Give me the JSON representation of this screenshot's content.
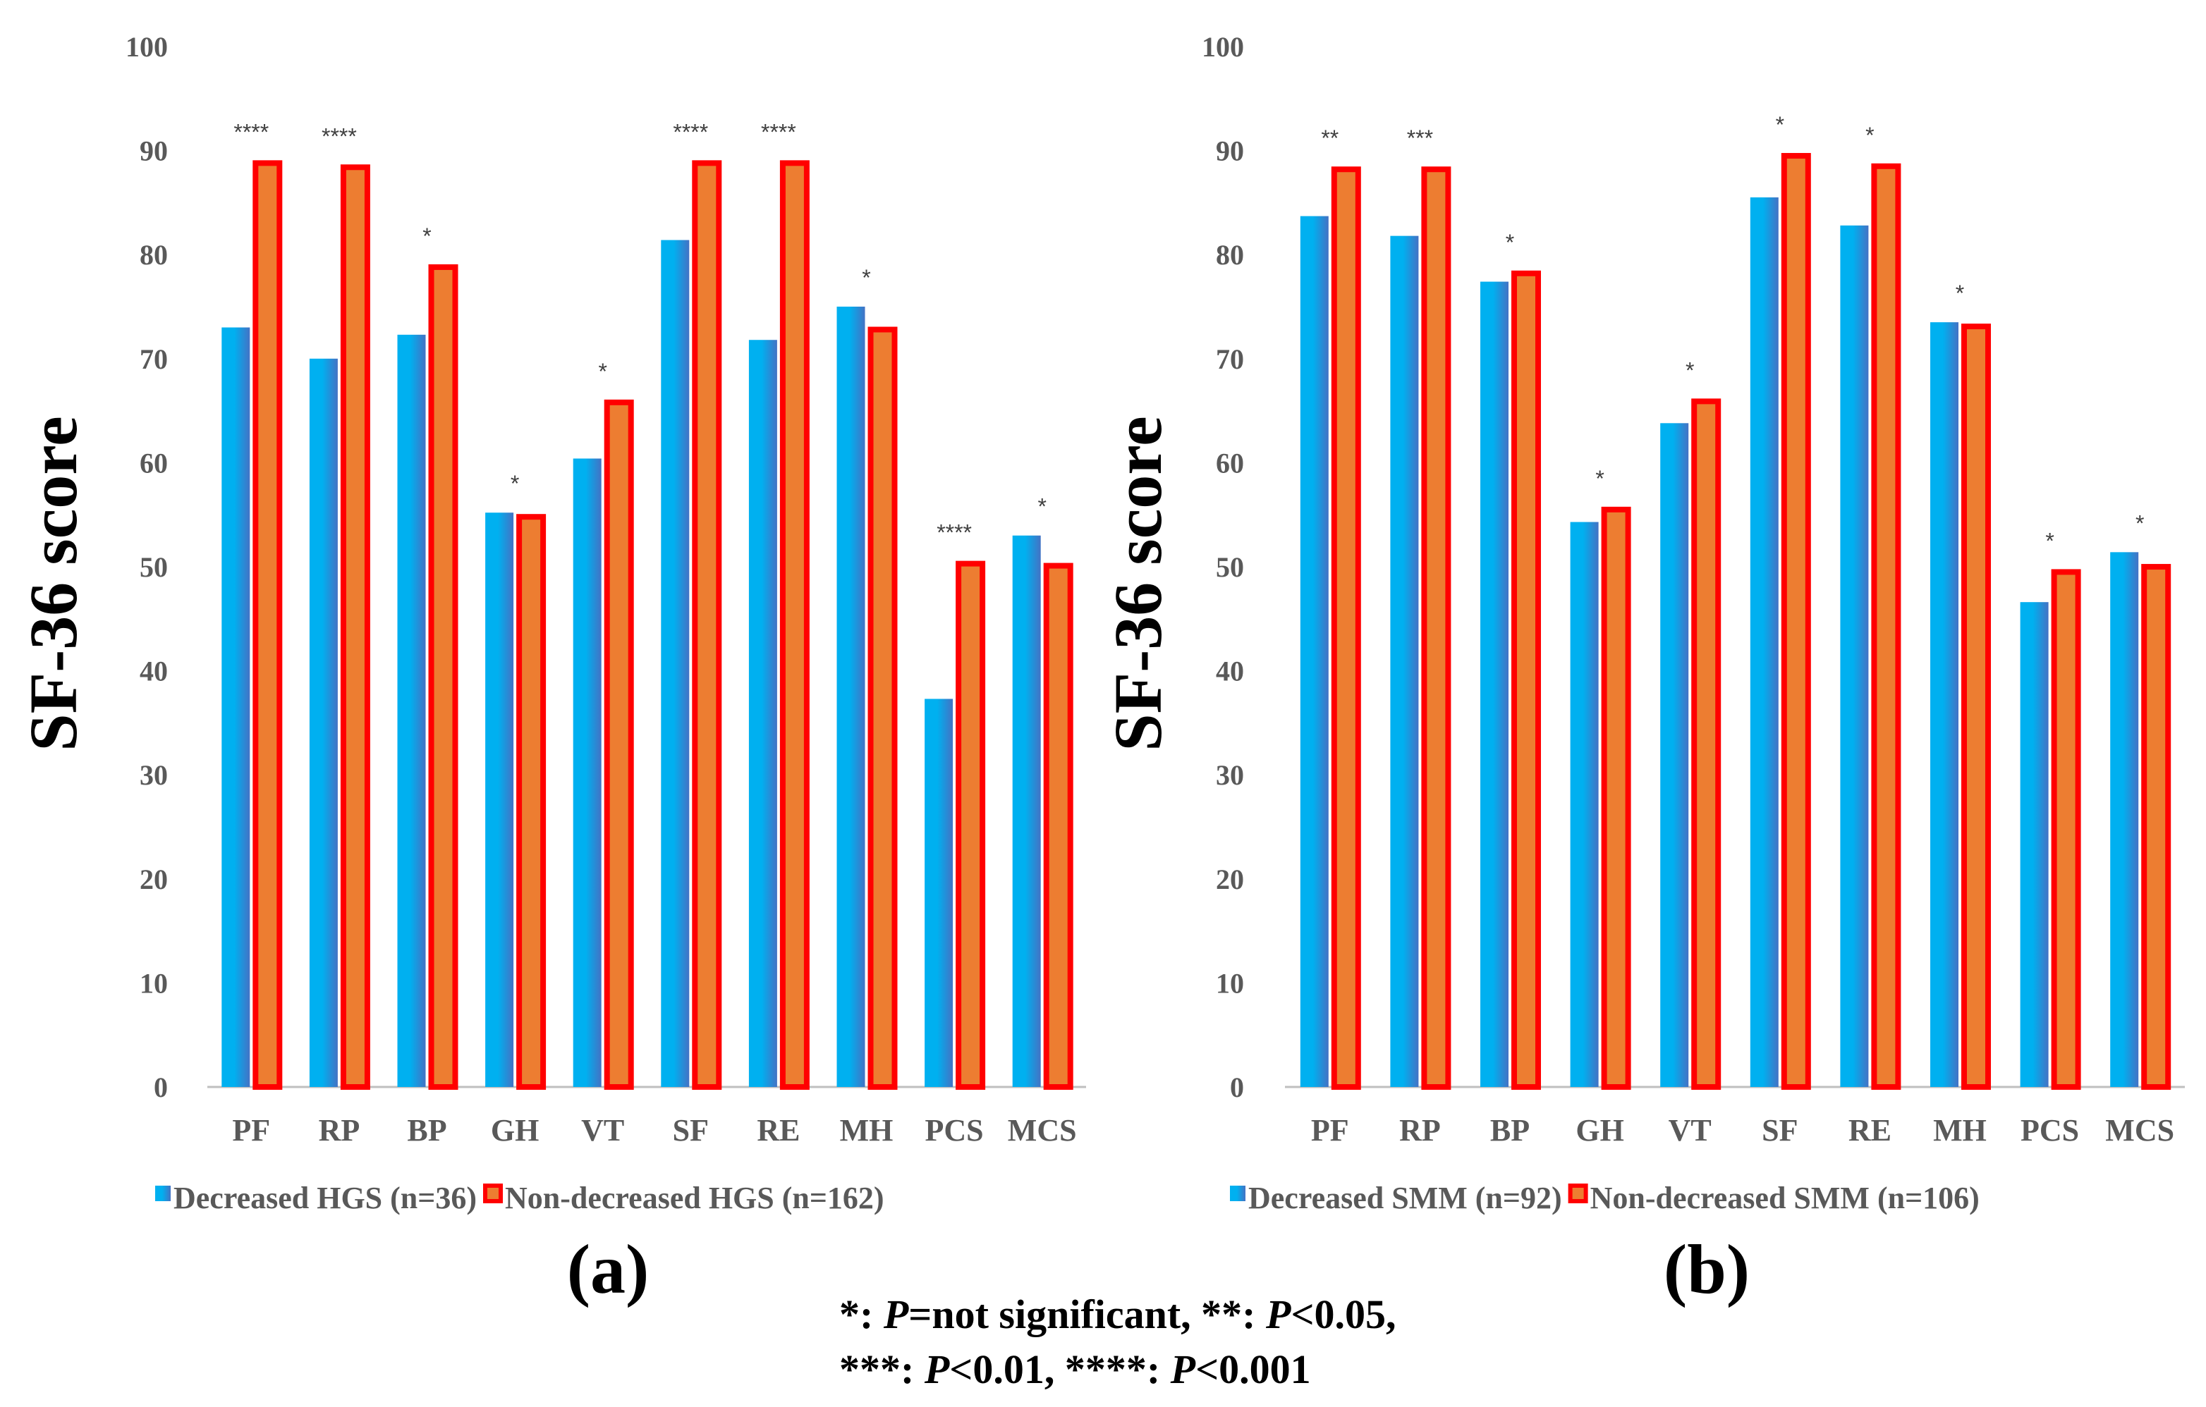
{
  "colors": {
    "decreased_fill": "#00B0F0",
    "decreased_shade": "#4472C4",
    "nondecreased_fill": "#ED7D31",
    "nondecreased_edge": "#FF0000",
    "axis": "#BFBFBF",
    "tick_text": "#595959"
  },
  "chart_data": [
    {
      "type": "bar",
      "panel_label": "(a)",
      "ylabel": "SF-36 score",
      "xlabel": "",
      "ylim": [
        0,
        100
      ],
      "yticks": [
        "0",
        "10",
        "20",
        "30",
        "40",
        "50",
        "60",
        "70",
        "80",
        "90",
        "100"
      ],
      "categories": [
        "PF",
        "RP",
        "BP",
        "GH",
        "VT",
        "SF",
        "RE",
        "MH",
        "PCS",
        "MCS"
      ],
      "series": [
        {
          "name": "Decreased HGS (n=36)",
          "values": [
            73,
            70,
            72.3,
            55.2,
            60.4,
            81.4,
            71.8,
            75,
            37.3,
            53
          ]
        },
        {
          "name": "Non-decreased HGS (n=162)",
          "values": [
            89,
            88.6,
            79,
            55,
            66,
            89,
            89,
            73,
            50.5,
            50.3
          ]
        }
      ],
      "significance": [
        "****",
        "****",
        "*",
        "*",
        "*",
        "****",
        "****",
        "*",
        "****",
        "*"
      ]
    },
    {
      "type": "bar",
      "panel_label": "(b)",
      "ylabel": "SF-36 score",
      "xlabel": "",
      "ylim": [
        0,
        100
      ],
      "yticks": [
        "0",
        "10",
        "20",
        "30",
        "40",
        "50",
        "60",
        "70",
        "80",
        "90",
        "100"
      ],
      "categories": [
        "PF",
        "RP",
        "BP",
        "GH",
        "VT",
        "SF",
        "RE",
        "MH",
        "PCS",
        "MCS"
      ],
      "series": [
        {
          "name": "Decreased SMM (n=92)",
          "values": [
            83.7,
            81.8,
            77.4,
            54.3,
            63.8,
            85.5,
            82.8,
            73.5,
            46.6,
            51.4
          ]
        },
        {
          "name": "Non-decreased SMM (n=106)",
          "values": [
            88.4,
            88.4,
            78.4,
            55.7,
            66.1,
            89.7,
            88.7,
            73.3,
            49.7,
            50.2
          ]
        }
      ],
      "significance": [
        "**",
        "***",
        "*",
        "*",
        "*",
        "*",
        "*",
        "*",
        "*",
        "*"
      ]
    }
  ],
  "footnote": {
    "line1": {
      "s1": "*: ",
      "p1": "P",
      "s2": "=not significant, **: ",
      "p2": "P",
      "s3": "<0.05,"
    },
    "line2": {
      "s1": "***: ",
      "p1": "P",
      "s2": "<0.01, ****: ",
      "p2": "P",
      "s3": "<0.001"
    }
  }
}
